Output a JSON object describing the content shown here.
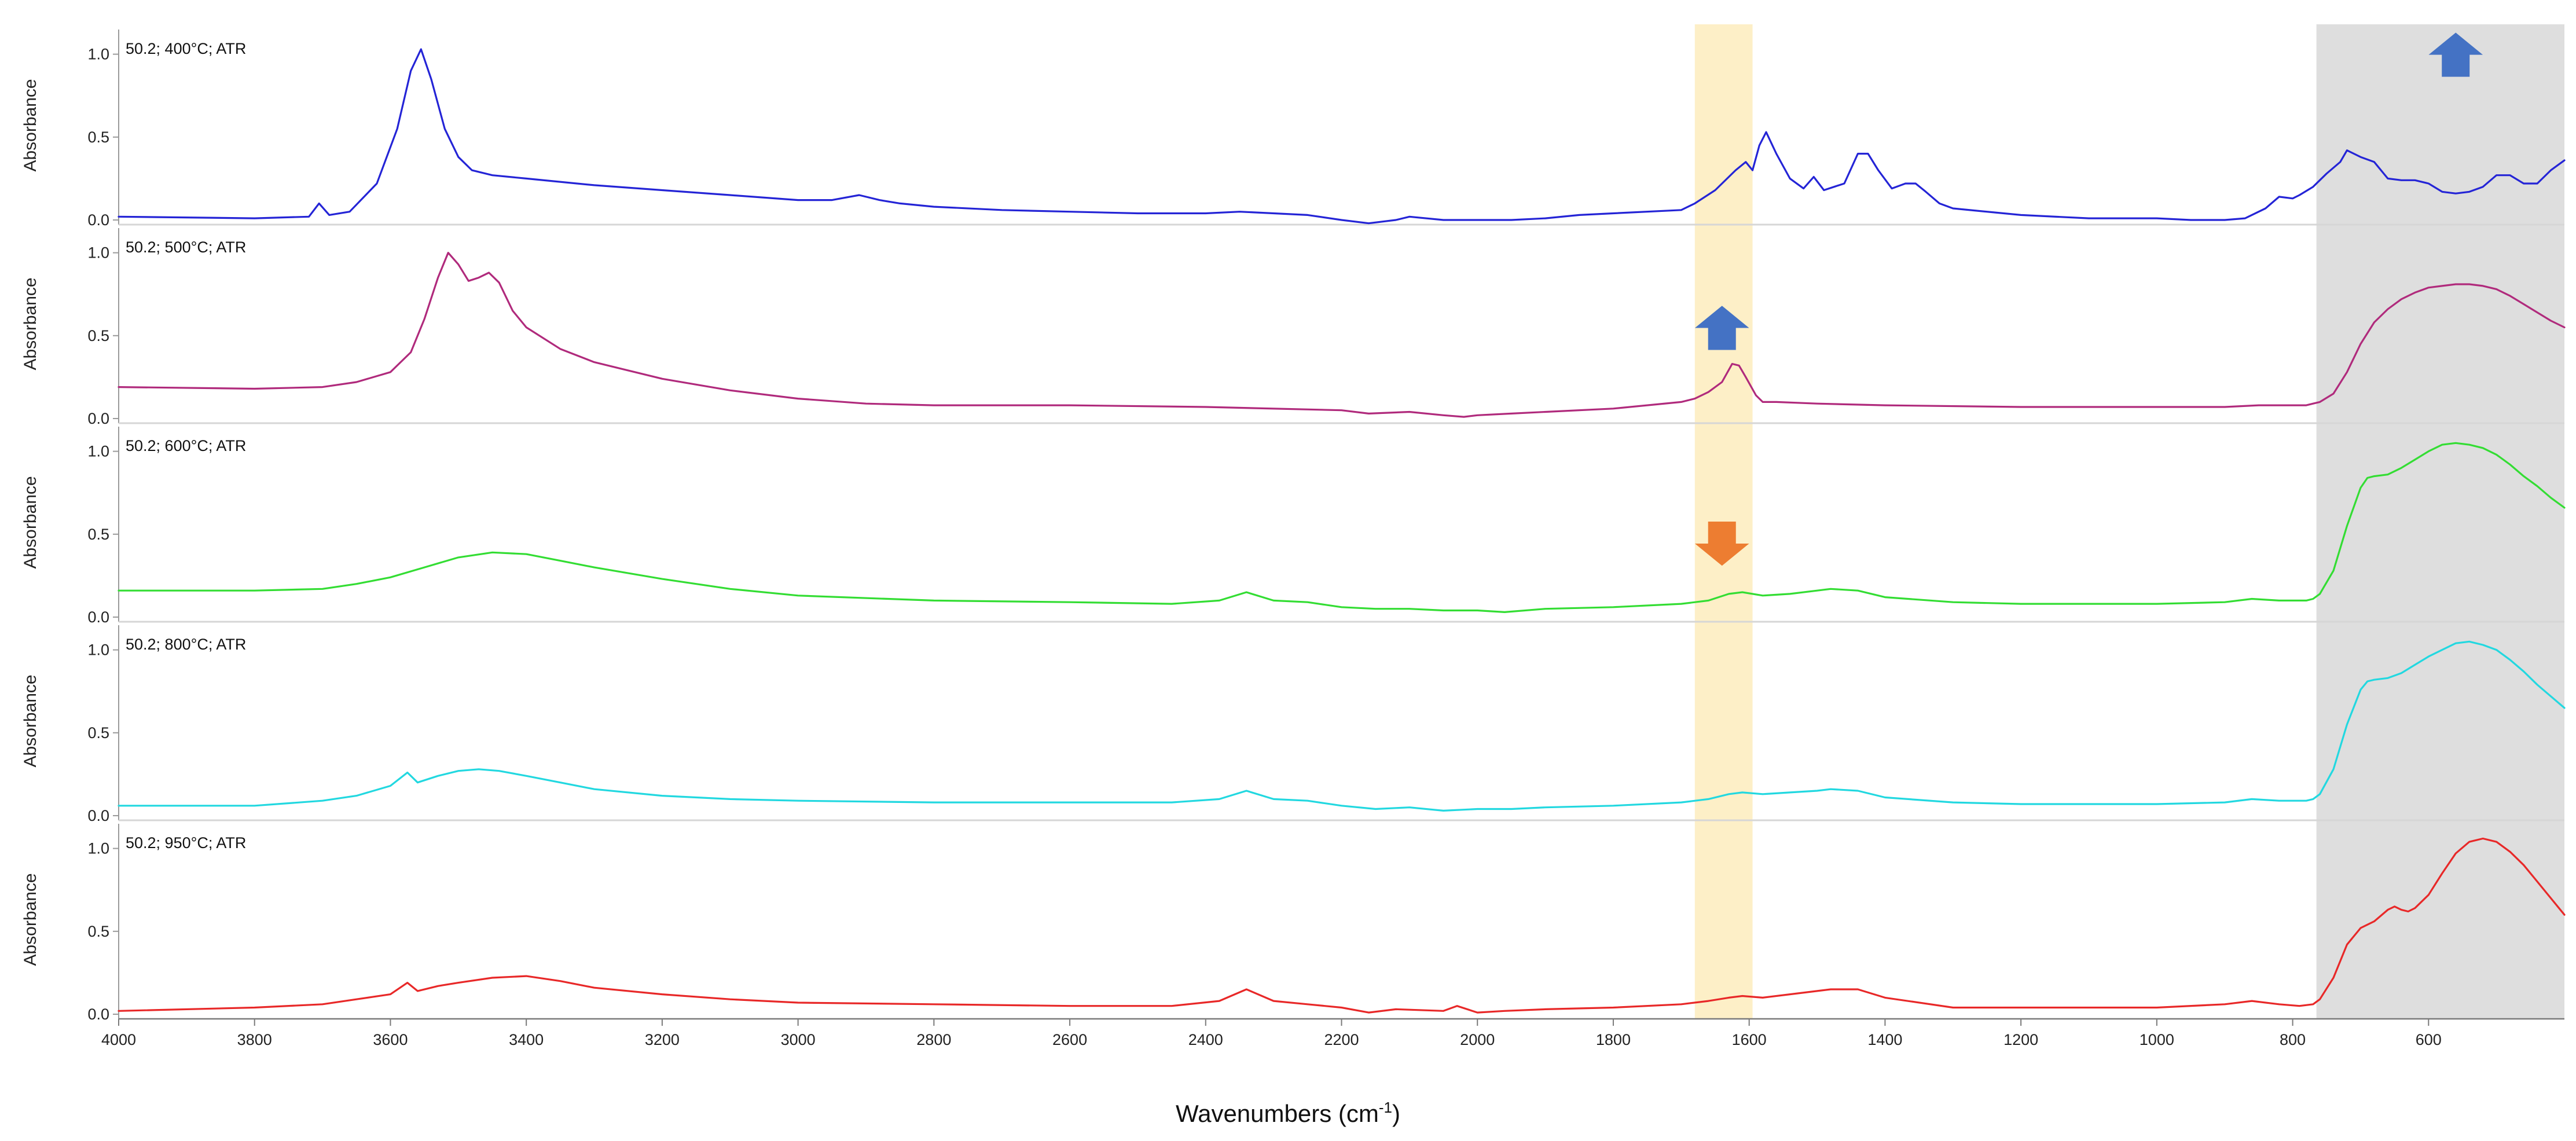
{
  "chart_data": {
    "type": "line",
    "title": "",
    "xlabel": "Wavenumbers (cm",
    "xlabel_sup": "-1",
    "xlabel_close": ")",
    "ylabel": "Absorbance",
    "xlim": [
      4000,
      400
    ],
    "ylim": [
      0,
      1.1
    ],
    "x_reversed": true,
    "x_ticks": [
      4000,
      3800,
      3600,
      3400,
      3200,
      3000,
      2800,
      2600,
      2400,
      2200,
      2000,
      1800,
      1600,
      1400,
      1200,
      1000,
      800,
      600
    ],
    "y_ticks": [
      "0.0",
      "0.5",
      "1.0"
    ],
    "y_tick_values": [
      0,
      0.5,
      1.0
    ],
    "highlights": [
      {
        "name": "band-highlight-1640",
        "from": 1680,
        "to": 1595,
        "color": "#fdefc7"
      },
      {
        "name": "band-highlight-low",
        "from": 765,
        "to": 400,
        "color": "#dedede"
      }
    ],
    "arrows": [
      {
        "panel": 0,
        "x": 560,
        "y": 1.0,
        "direction": "up",
        "color": "#4472c4"
      },
      {
        "panel": 1,
        "x": 1640,
        "y": 0.55,
        "direction": "up",
        "color": "#4472c4"
      },
      {
        "panel": 2,
        "x": 1640,
        "y": 0.44,
        "direction": "down",
        "color": "#ed7d31"
      }
    ],
    "panels": [
      {
        "label": "50.2; 400°C; ATR",
        "color": "#2424d6",
        "x": [
          4000,
          3800,
          3720,
          3705,
          3690,
          3660,
          3620,
          3590,
          3570,
          3555,
          3540,
          3520,
          3500,
          3480,
          3450,
          3400,
          3300,
          3200,
          3100,
          3000,
          2950,
          2910,
          2880,
          2850,
          2800,
          2700,
          2600,
          2500,
          2400,
          2350,
          2300,
          2250,
          2200,
          2160,
          2120,
          2100,
          2050,
          2000,
          1950,
          1900,
          1850,
          1800,
          1700,
          1680,
          1650,
          1620,
          1605,
          1595,
          1585,
          1575,
          1560,
          1540,
          1520,
          1505,
          1490,
          1475,
          1460,
          1440,
          1425,
          1410,
          1390,
          1370,
          1355,
          1340,
          1320,
          1300,
          1200,
          1100,
          1000,
          950,
          900,
          870,
          840,
          820,
          800,
          790,
          770,
          750,
          730,
          720,
          700,
          680,
          660,
          640,
          620,
          600,
          580,
          560,
          540,
          520,
          500,
          480,
          460,
          440,
          420,
          400
        ],
        "y": [
          0.02,
          0.01,
          0.02,
          0.1,
          0.03,
          0.05,
          0.22,
          0.55,
          0.9,
          1.03,
          0.85,
          0.55,
          0.38,
          0.3,
          0.27,
          0.25,
          0.21,
          0.18,
          0.15,
          0.12,
          0.12,
          0.15,
          0.12,
          0.1,
          0.08,
          0.06,
          0.05,
          0.04,
          0.04,
          0.05,
          0.04,
          0.03,
          0.0,
          -0.02,
          0.0,
          0.02,
          0.0,
          0.0,
          0.0,
          0.01,
          0.03,
          0.04,
          0.06,
          0.1,
          0.18,
          0.3,
          0.35,
          0.3,
          0.45,
          0.53,
          0.4,
          0.25,
          0.19,
          0.26,
          0.18,
          0.2,
          0.22,
          0.4,
          0.4,
          0.3,
          0.19,
          0.22,
          0.22,
          0.17,
          0.1,
          0.07,
          0.03,
          0.01,
          0.01,
          0.0,
          0.0,
          0.01,
          0.07,
          0.14,
          0.13,
          0.15,
          0.2,
          0.28,
          0.35,
          0.42,
          0.38,
          0.35,
          0.25,
          0.24,
          0.24,
          0.22,
          0.17,
          0.16,
          0.17,
          0.2,
          0.27,
          0.27,
          0.22,
          0.22,
          0.3,
          0.36
        ]
      },
      {
        "label": "50.2; 500°C; ATR",
        "color": "#b02a7c",
        "x": [
          4000,
          3800,
          3700,
          3650,
          3600,
          3570,
          3550,
          3530,
          3515,
          3500,
          3485,
          3470,
          3455,
          3440,
          3420,
          3400,
          3350,
          3300,
          3200,
          3100,
          3000,
          2900,
          2800,
          2600,
          2400,
          2200,
          2160,
          2100,
          2050,
          2020,
          2000,
          1950,
          1900,
          1800,
          1700,
          1680,
          1660,
          1640,
          1625,
          1615,
          1605,
          1590,
          1580,
          1560,
          1500,
          1400,
          1200,
          1000,
          900,
          850,
          800,
          780,
          770,
          760,
          740,
          720,
          700,
          680,
          660,
          640,
          620,
          600,
          580,
          560,
          540,
          520,
          500,
          480,
          460,
          440,
          420,
          400
        ],
        "y": [
          0.19,
          0.18,
          0.19,
          0.22,
          0.28,
          0.4,
          0.6,
          0.85,
          1.0,
          0.93,
          0.83,
          0.85,
          0.88,
          0.82,
          0.65,
          0.55,
          0.42,
          0.34,
          0.24,
          0.17,
          0.12,
          0.09,
          0.08,
          0.08,
          0.07,
          0.05,
          0.03,
          0.04,
          0.02,
          0.01,
          0.02,
          0.03,
          0.04,
          0.06,
          0.1,
          0.12,
          0.16,
          0.22,
          0.33,
          0.32,
          0.25,
          0.14,
          0.1,
          0.1,
          0.09,
          0.08,
          0.07,
          0.07,
          0.07,
          0.08,
          0.08,
          0.08,
          0.09,
          0.1,
          0.15,
          0.28,
          0.45,
          0.58,
          0.66,
          0.72,
          0.76,
          0.79,
          0.8,
          0.81,
          0.81,
          0.8,
          0.78,
          0.74,
          0.69,
          0.64,
          0.59,
          0.55
        ]
      },
      {
        "label": "50.2; 600°C; ATR",
        "color": "#33dd33",
        "x": [
          4000,
          3800,
          3700,
          3650,
          3600,
          3550,
          3500,
          3450,
          3400,
          3350,
          3300,
          3200,
          3100,
          3000,
          2800,
          2600,
          2450,
          2380,
          2340,
          2300,
          2250,
          2200,
          2150,
          2100,
          2050,
          2000,
          1960,
          1900,
          1800,
          1700,
          1660,
          1630,
          1610,
          1580,
          1540,
          1500,
          1480,
          1440,
          1400,
          1300,
          1200,
          1000,
          900,
          860,
          820,
          780,
          770,
          760,
          740,
          720,
          700,
          690,
          680,
          660,
          640,
          620,
          600,
          580,
          560,
          540,
          520,
          500,
          480,
          460,
          440,
          420,
          400
        ],
        "y": [
          0.16,
          0.16,
          0.17,
          0.2,
          0.24,
          0.3,
          0.36,
          0.39,
          0.38,
          0.34,
          0.3,
          0.23,
          0.17,
          0.13,
          0.1,
          0.09,
          0.08,
          0.1,
          0.15,
          0.1,
          0.09,
          0.06,
          0.05,
          0.05,
          0.04,
          0.04,
          0.03,
          0.05,
          0.06,
          0.08,
          0.1,
          0.14,
          0.15,
          0.13,
          0.14,
          0.16,
          0.17,
          0.16,
          0.12,
          0.09,
          0.08,
          0.08,
          0.09,
          0.11,
          0.1,
          0.1,
          0.11,
          0.14,
          0.28,
          0.55,
          0.78,
          0.84,
          0.85,
          0.86,
          0.9,
          0.95,
          1.0,
          1.04,
          1.05,
          1.04,
          1.02,
          0.98,
          0.92,
          0.85,
          0.79,
          0.72,
          0.66
        ]
      },
      {
        "label": "50.2; 800°C; ATR",
        "color": "#22d8e0",
        "x": [
          4000,
          3800,
          3700,
          3650,
          3600,
          3575,
          3560,
          3530,
          3500,
          3470,
          3440,
          3400,
          3350,
          3300,
          3200,
          3100,
          3000,
          2800,
          2600,
          2450,
          2380,
          2340,
          2300,
          2250,
          2200,
          2150,
          2100,
          2050,
          2000,
          1950,
          1900,
          1800,
          1700,
          1660,
          1630,
          1610,
          1580,
          1540,
          1500,
          1480,
          1440,
          1400,
          1300,
          1200,
          1000,
          900,
          860,
          820,
          780,
          770,
          760,
          740,
          720,
          700,
          690,
          680,
          660,
          640,
          620,
          600,
          580,
          560,
          540,
          520,
          500,
          480,
          460,
          440,
          420,
          400
        ],
        "y": [
          0.06,
          0.06,
          0.09,
          0.12,
          0.18,
          0.26,
          0.2,
          0.24,
          0.27,
          0.28,
          0.27,
          0.24,
          0.2,
          0.16,
          0.12,
          0.1,
          0.09,
          0.08,
          0.08,
          0.08,
          0.1,
          0.15,
          0.1,
          0.09,
          0.06,
          0.04,
          0.05,
          0.03,
          0.04,
          0.04,
          0.05,
          0.06,
          0.08,
          0.1,
          0.13,
          0.14,
          0.13,
          0.14,
          0.15,
          0.16,
          0.15,
          0.11,
          0.08,
          0.07,
          0.07,
          0.08,
          0.1,
          0.09,
          0.09,
          0.1,
          0.13,
          0.28,
          0.55,
          0.76,
          0.81,
          0.82,
          0.83,
          0.86,
          0.91,
          0.96,
          1.0,
          1.04,
          1.05,
          1.03,
          1.0,
          0.94,
          0.87,
          0.79,
          0.72,
          0.65
        ]
      },
      {
        "label": "50.2; 950°C; ATR",
        "color": "#e82828",
        "x": [
          4000,
          3800,
          3700,
          3650,
          3600,
          3575,
          3560,
          3530,
          3500,
          3450,
          3400,
          3350,
          3300,
          3200,
          3100,
          3000,
          2800,
          2600,
          2450,
          2380,
          2340,
          2300,
          2250,
          2200,
          2160,
          2120,
          2050,
          2030,
          2000,
          1960,
          1900,
          1800,
          1700,
          1660,
          1630,
          1610,
          1580,
          1540,
          1500,
          1480,
          1440,
          1400,
          1300,
          1200,
          1000,
          900,
          860,
          820,
          790,
          770,
          760,
          740,
          720,
          700,
          680,
          660,
          650,
          640,
          630,
          620,
          600,
          580,
          560,
          540,
          520,
          500,
          480,
          460,
          440,
          420,
          400
        ],
        "y": [
          0.02,
          0.04,
          0.06,
          0.09,
          0.12,
          0.19,
          0.14,
          0.17,
          0.19,
          0.22,
          0.23,
          0.2,
          0.16,
          0.12,
          0.09,
          0.07,
          0.06,
          0.05,
          0.05,
          0.08,
          0.15,
          0.08,
          0.06,
          0.04,
          0.01,
          0.03,
          0.02,
          0.05,
          0.01,
          0.02,
          0.03,
          0.04,
          0.06,
          0.08,
          0.1,
          0.11,
          0.1,
          0.12,
          0.14,
          0.15,
          0.15,
          0.1,
          0.04,
          0.04,
          0.04,
          0.06,
          0.08,
          0.06,
          0.05,
          0.06,
          0.09,
          0.22,
          0.42,
          0.52,
          0.56,
          0.63,
          0.65,
          0.63,
          0.62,
          0.64,
          0.72,
          0.85,
          0.97,
          1.04,
          1.06,
          1.04,
          0.98,
          0.9,
          0.8,
          0.7,
          0.6
        ]
      }
    ]
  }
}
